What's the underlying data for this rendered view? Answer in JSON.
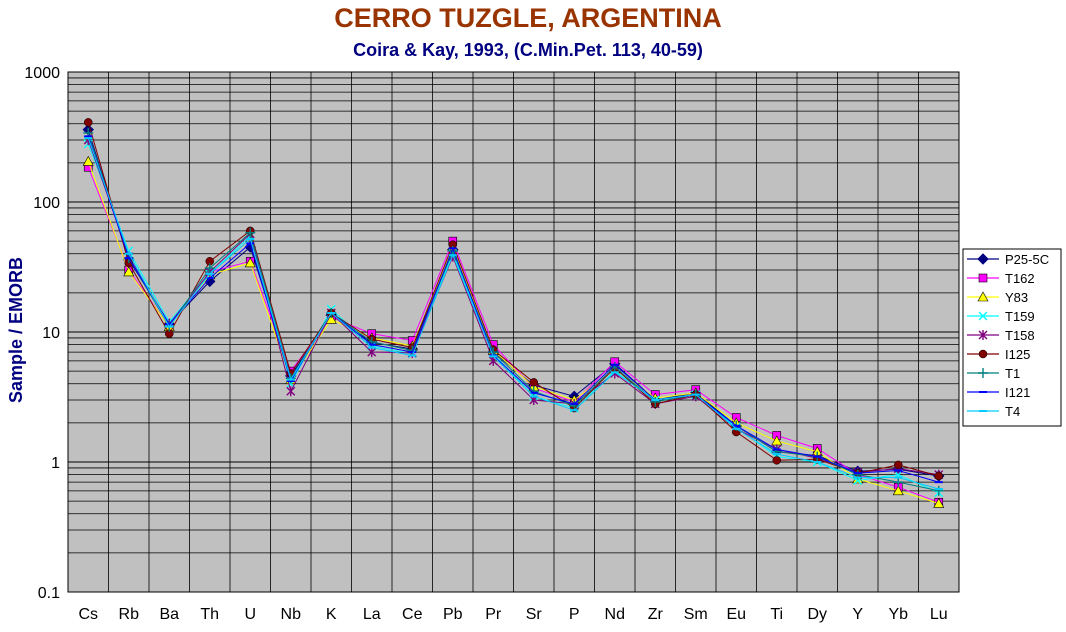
{
  "chart_data": {
    "type": "line",
    "title": "CERRO TUZGLE, ARGENTINA",
    "subtitle": "Coira & Kay, 1993, (C.Min.Pet. 113, 40-59)",
    "ylabel": "Sample / EMORB",
    "xlabel": "",
    "yscale": "log",
    "ylim": [
      0.1,
      1000
    ],
    "y_tick_labels": [
      "1000",
      "100",
      "10",
      "1",
      "0.1"
    ],
    "grid": true,
    "legend_position": "right",
    "categories": [
      "Cs",
      "Rb",
      "Ba",
      "Th",
      "U",
      "Nb",
      "K",
      "La",
      "Ce",
      "Pb",
      "Pr",
      "Sr",
      "P",
      "Nd",
      "Zr",
      "Sm",
      "Eu",
      "Ti",
      "Dy",
      "Y",
      "Yb",
      "Lu"
    ],
    "series": [
      {
        "name": "P25-5C",
        "color": "#000080",
        "marker": "diamond",
        "values": [
          360,
          36,
          11.5,
          24.5,
          45,
          4.6,
          13.5,
          8.3,
          7.4,
          43,
          7.0,
          3.9,
          3.2,
          5.7,
          3.0,
          3.4,
          1.9,
          1.2,
          1.12,
          0.85,
          0.88,
          0.78
        ]
      },
      {
        "name": "T162",
        "color": "#ff00ff",
        "marker": "square",
        "values": [
          185,
          30,
          11,
          29,
          35,
          5.0,
          13,
          9.7,
          8.6,
          50,
          8.0,
          3.7,
          2.9,
          5.9,
          3.3,
          3.6,
          2.2,
          1.6,
          1.27,
          0.8,
          0.64,
          0.49
        ]
      },
      {
        "name": "Y83",
        "color": "#ffff00",
        "marker": "triangle",
        "values": [
          205,
          29,
          11,
          27.5,
          34,
          4.3,
          12.5,
          9.0,
          7.8,
          45,
          7.2,
          3.8,
          3.0,
          5.2,
          3.1,
          3.4,
          2.0,
          1.45,
          1.2,
          0.74,
          0.6,
          0.48
        ]
      },
      {
        "name": "T159",
        "color": "#00ffff",
        "marker": "x",
        "values": [
          280,
          42,
          12,
          28,
          55,
          4.0,
          15,
          7.8,
          6.8,
          40,
          6.8,
          3.2,
          2.6,
          5.0,
          3.0,
          3.3,
          1.85,
          1.1,
          1.0,
          0.72,
          0.8,
          0.58
        ]
      },
      {
        "name": "T158",
        "color": "#800080",
        "marker": "star",
        "values": [
          300,
          38,
          11.5,
          29,
          57,
          3.5,
          14,
          7.0,
          6.9,
          38,
          6.0,
          3.0,
          2.8,
          4.8,
          2.8,
          3.2,
          1.8,
          1.25,
          1.07,
          0.83,
          0.89,
          0.8
        ]
      },
      {
        "name": "I125",
        "color": "#800000",
        "marker": "circle",
        "values": [
          410,
          34,
          9.7,
          35,
          60,
          4.8,
          14,
          8.8,
          7.6,
          47,
          7.3,
          4.1,
          2.6,
          5.3,
          2.8,
          3.3,
          1.7,
          1.03,
          1.05,
          0.82,
          0.95,
          0.78
        ]
      },
      {
        "name": "T1",
        "color": "#008080",
        "marker": "plus",
        "values": [
          340,
          37,
          11,
          31,
          58,
          4.4,
          14,
          8.4,
          7.2,
          42,
          7.0,
          3.5,
          2.7,
          5.4,
          2.9,
          3.3,
          1.9,
          1.2,
          1.1,
          0.8,
          0.7,
          0.6
        ]
      },
      {
        "name": "I121",
        "color": "#0000ff",
        "marker": "dash",
        "values": [
          320,
          37,
          11.5,
          26,
          48,
          4.2,
          14,
          8.0,
          7.0,
          44,
          6.6,
          3.4,
          2.8,
          5.6,
          3.0,
          3.3,
          1.9,
          1.25,
          1.1,
          0.82,
          0.86,
          0.7
        ]
      },
      {
        "name": "T4",
        "color": "#00ccff",
        "marker": "dash",
        "values": [
          310,
          40,
          11,
          28,
          52,
          4.3,
          14,
          7.6,
          6.6,
          39,
          6.5,
          3.2,
          2.5,
          4.9,
          3.0,
          3.3,
          1.8,
          1.15,
          1.0,
          0.76,
          0.76,
          0.62
        ]
      }
    ]
  }
}
